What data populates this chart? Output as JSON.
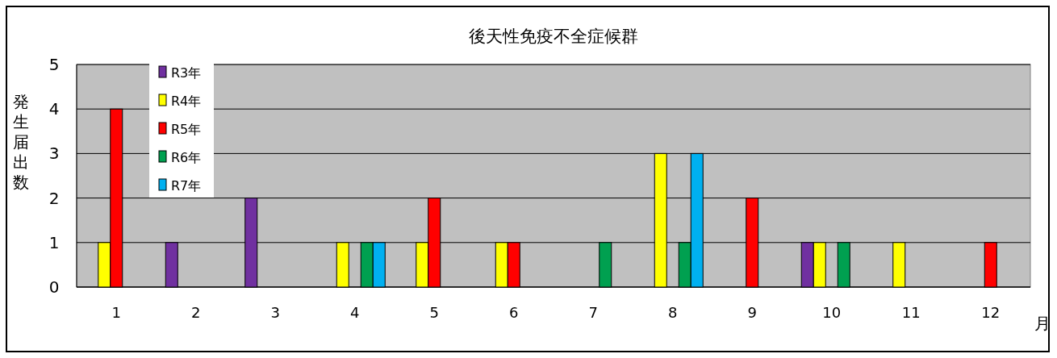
{
  "chart_data": {
    "type": "bar",
    "title": "後天性免疫不全症候群",
    "xlabel": "月",
    "ylabel": "発生届出数",
    "categories": [
      "1",
      "2",
      "3",
      "4",
      "5",
      "6",
      "7",
      "8",
      "9",
      "10",
      "11",
      "12"
    ],
    "series": [
      {
        "name": "R3年",
        "color": "#7030a0",
        "values": [
          0,
          1,
          2,
          0,
          0,
          0,
          0,
          0,
          0,
          1,
          0,
          0
        ]
      },
      {
        "name": "R4年",
        "color": "#ffff00",
        "values": [
          1,
          0,
          0,
          1,
          1,
          1,
          0,
          3,
          0,
          1,
          1,
          0
        ]
      },
      {
        "name": "R5年",
        "color": "#ff0000",
        "values": [
          4,
          0,
          0,
          0,
          2,
          1,
          0,
          0,
          2,
          0,
          0,
          1
        ]
      },
      {
        "name": "R6年",
        "color": "#00a050",
        "values": [
          0,
          0,
          0,
          1,
          0,
          0,
          1,
          1,
          0,
          1,
          0,
          0
        ]
      },
      {
        "name": "R7年",
        "color": "#00b0f0",
        "values": [
          0,
          0,
          0,
          1,
          0,
          0,
          0,
          3,
          0,
          0,
          0,
          0
        ]
      }
    ],
    "ylim": [
      0,
      5
    ],
    "yticks": [
      0,
      1,
      2,
      3,
      4,
      5
    ],
    "grid": "y",
    "legend": "top left"
  }
}
